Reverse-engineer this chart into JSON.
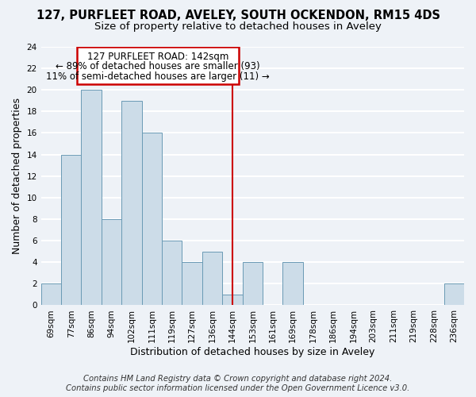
{
  "title": "127, PURFLEET ROAD, AVELEY, SOUTH OCKENDON, RM15 4DS",
  "subtitle": "Size of property relative to detached houses in Aveley",
  "xlabel": "Distribution of detached houses by size in Aveley",
  "ylabel": "Number of detached properties",
  "bin_labels": [
    "69sqm",
    "77sqm",
    "86sqm",
    "94sqm",
    "102sqm",
    "111sqm",
    "119sqm",
    "127sqm",
    "136sqm",
    "144sqm",
    "153sqm",
    "161sqm",
    "169sqm",
    "178sqm",
    "186sqm",
    "194sqm",
    "203sqm",
    "211sqm",
    "219sqm",
    "228sqm",
    "236sqm"
  ],
  "bar_heights": [
    2,
    14,
    20,
    8,
    19,
    16,
    6,
    4,
    5,
    1,
    4,
    0,
    4,
    0,
    0,
    0,
    0,
    0,
    0,
    0,
    2
  ],
  "bar_color": "#ccdce8",
  "bar_edge_color": "#6a9ab5",
  "vline_x_index": 9,
  "vline_color": "#cc0000",
  "annotation_line1": "127 PURFLEET ROAD: 142sqm",
  "annotation_line2": "← 89% of detached houses are smaller (93)",
  "annotation_line3": "11% of semi-detached houses are larger (11) →",
  "ylim": [
    0,
    24
  ],
  "yticks": [
    0,
    2,
    4,
    6,
    8,
    10,
    12,
    14,
    16,
    18,
    20,
    22,
    24
  ],
  "footer_line1": "Contains HM Land Registry data © Crown copyright and database right 2024.",
  "footer_line2": "Contains public sector information licensed under the Open Government Licence v3.0.",
  "background_color": "#eef2f7",
  "grid_color": "#ffffff",
  "title_fontsize": 10.5,
  "subtitle_fontsize": 9.5,
  "axis_label_fontsize": 9,
  "tick_fontsize": 7.5,
  "footer_fontsize": 7.2
}
